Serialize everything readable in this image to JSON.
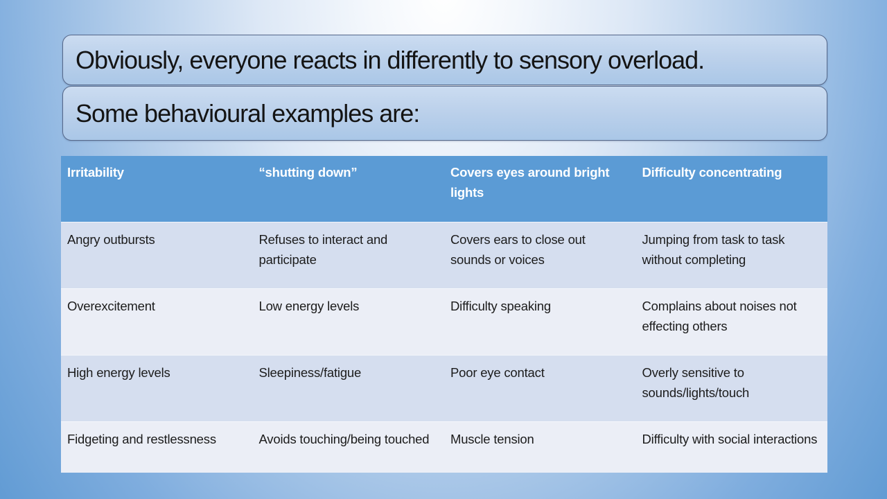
{
  "slide": {
    "boxes": [
      {
        "text": "Obviously, everyone reacts in differently to sensory overload."
      },
      {
        "text": "Some behavioural examples are:"
      }
    ]
  },
  "table": {
    "headers": [
      "Irritability",
      "“shutting down”",
      "Covers eyes around bright lights",
      "Difficulty concentrating"
    ],
    "rows": [
      [
        "Angry outbursts",
        "Refuses to interact and participate",
        "Covers ears to close out sounds or voices",
        "Jumping from task to task without completing"
      ],
      [
        "Overexcitement",
        "Low energy levels",
        "Difficulty speaking",
        "Complains about noises not effecting others"
      ],
      [
        "High energy levels",
        "Sleepiness/fatigue",
        "Poor eye contact",
        "Overly sensitive to sounds/lights/touch"
      ],
      [
        "Fidgeting and restlessness",
        "Avoids touching/being touched",
        "Muscle tension",
        "Difficulty with social interactions"
      ]
    ]
  },
  "colors": {
    "header_bg": "#5B9BD5",
    "row_band_a": "#D5DEEF",
    "row_band_b": "#EBEEF6",
    "box_fill": "#B9CFE9",
    "box_border": "#56688A",
    "background_edge": "#4F87C5",
    "background_center": "#FFFFFF"
  }
}
